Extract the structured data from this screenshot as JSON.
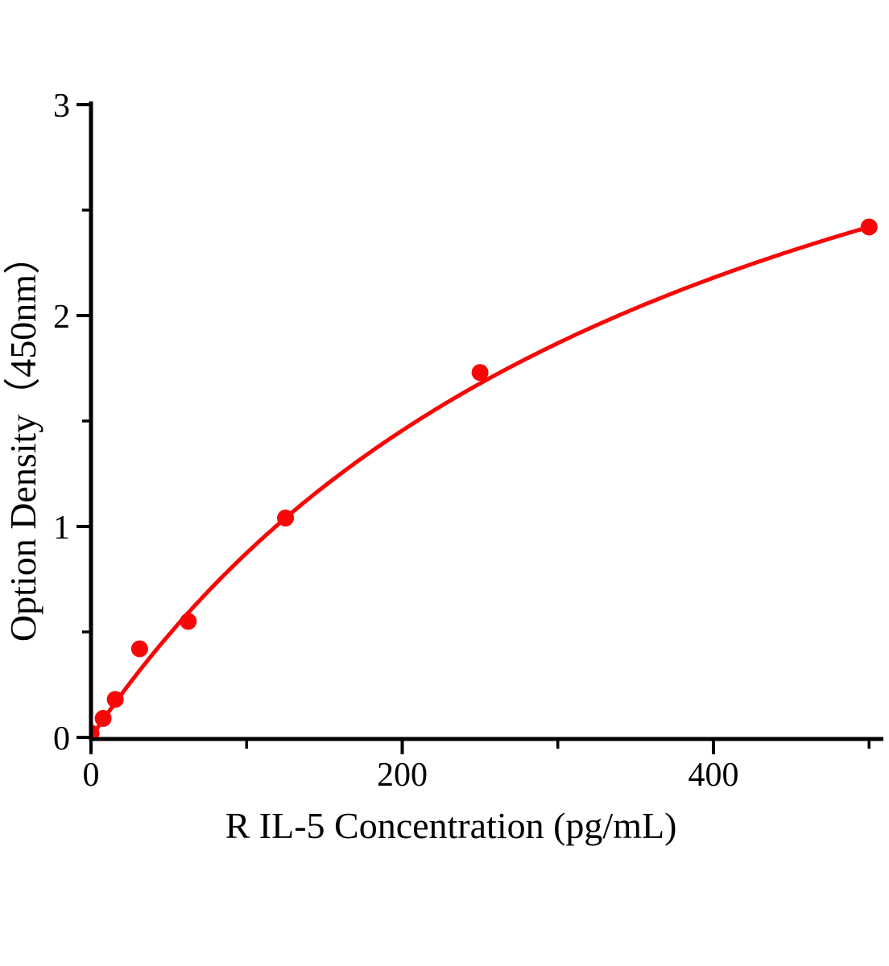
{
  "chart_data": {
    "type": "scatter",
    "title": "",
    "xlabel": "R IL-5 Concentration (pg/mL)",
    "ylabel": "Option Density（450nm）",
    "x": [
      0,
      7.8,
      15.6,
      31.25,
      62.5,
      125,
      250,
      500
    ],
    "y": [
      0.02,
      0.09,
      0.18,
      0.42,
      0.55,
      1.04,
      1.73,
      2.42
    ],
    "xlim": [
      0,
      509
    ],
    "ylim": [
      0,
      3
    ],
    "x_ticks_major": [
      0,
      200,
      400
    ],
    "x_ticks_minor": [
      100,
      300,
      500
    ],
    "y_ticks_major": [
      0,
      1,
      2,
      3
    ],
    "y_ticks_minor": [
      0.5,
      1.5,
      2.5
    ],
    "grid": false,
    "legend_position": "none",
    "marker_color": "#f70808",
    "line_color": "#f70808",
    "axis_color": "#000000",
    "background_color": "#ffffff",
    "fit_curve": {
      "model": "michaelis_menten",
      "a": 4.34,
      "b": 396.6
    }
  }
}
